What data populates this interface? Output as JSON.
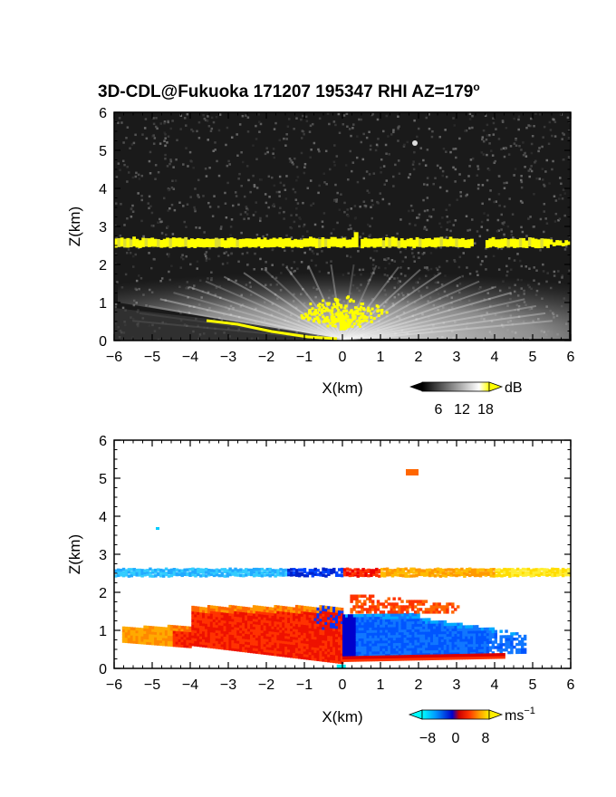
{
  "title_main": "3D-CDL@Fukuoka 171207 195347 RHI AZ=179",
  "title_degree": "o",
  "chart_data": [
    {
      "type": "heatmap",
      "variable": "reflectivity",
      "title": "3D-CDL@Fukuoka 171207 195347 RHI AZ=179°",
      "xlabel": "X(km)",
      "ylabel": "Z(km)",
      "xlim": [
        -6,
        6
      ],
      "ylim": [
        0,
        6
      ],
      "xticks": [
        "−6",
        "−5",
        "−4",
        "−3",
        "−2",
        "−1",
        "0",
        "1",
        "2",
        "3",
        "4",
        "5",
        "6"
      ],
      "yticks": [
        "0",
        "1",
        "2",
        "3",
        "4",
        "5",
        "6"
      ],
      "colorbar": {
        "unit": "dB",
        "ticks": [
          "6",
          "12",
          "18"
        ],
        "range": [
          0,
          20
        ],
        "colors": [
          "#000000",
          "#ffffff",
          "#ffff00"
        ]
      },
      "features": {
        "cloud_layer_base_km": 2.45,
        "cloud_layer_top_km": 2.65,
        "cloud_layer_x_km": [
          -6,
          6
        ],
        "surface_echo_x_km": [
          -3.5,
          0.0
        ],
        "bright_core_x_km": [
          -1,
          1
        ],
        "bright_core_top_km": 1.4
      }
    },
    {
      "type": "heatmap",
      "variable": "doppler_velocity",
      "xlabel": "X(km)",
      "ylabel": "Z(km)",
      "xlim": [
        -6,
        6
      ],
      "ylim": [
        0,
        6
      ],
      "xticks": [
        "−6",
        "−5",
        "−4",
        "−3",
        "−2",
        "−1",
        "0",
        "1",
        "2",
        "3",
        "4",
        "5",
        "6"
      ],
      "yticks": [
        "0",
        "1",
        "2",
        "3",
        "4",
        "5",
        "6"
      ],
      "colorbar": {
        "unit_base": "ms",
        "unit_exp": "−1",
        "ticks": [
          "−8",
          "0",
          "8"
        ],
        "range": [
          -10,
          10
        ],
        "colors": [
          "#00ffff",
          "#0055ff",
          "#0000cc",
          "#cc0000",
          "#ff3300",
          "#ffaa00",
          "#ffee00"
        ]
      },
      "features": {
        "negative_flow_region_x_km": [
          -4,
          0
        ],
        "positive_flow_region_x_km": [
          0,
          4.5
        ],
        "region_height_km": [
          0.2,
          1.6
        ],
        "upper_layer_z_km": 2.5
      }
    }
  ]
}
